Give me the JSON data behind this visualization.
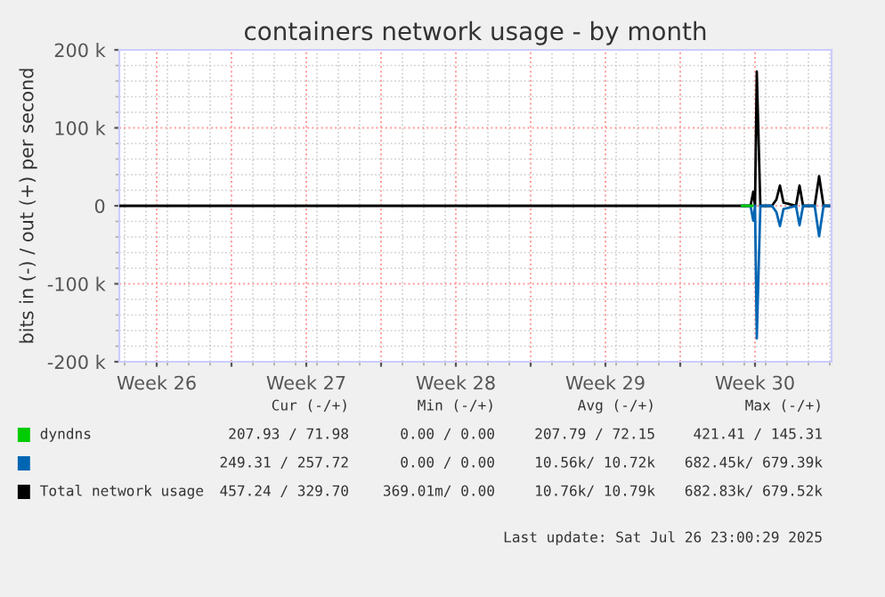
{
  "chart_data": {
    "type": "line",
    "title": "containers network usage - by month",
    "ylabel": "bits in (-) / out (+) per second",
    "xlim": [
      "2025-06-23T18:00",
      "2025-07-27T02:00"
    ],
    "xticks": [
      {
        "value": "2025-06-25T12:00",
        "label": "Week 26"
      },
      {
        "value": "2025-06-29",
        "label": null
      },
      {
        "value": "2025-07-02T12:00",
        "label": "Week 27"
      },
      {
        "value": "2025-07-06",
        "label": null
      },
      {
        "value": "2025-07-09T12:00",
        "label": "Week 28"
      },
      {
        "value": "2025-07-13",
        "label": null
      },
      {
        "value": "2025-07-16T12:00",
        "label": "Week 29"
      },
      {
        "value": "2025-07-20",
        "label": null
      },
      {
        "value": "2025-07-23T12:00",
        "label": "Week 30"
      }
    ],
    "ylim": [
      -200000,
      200000
    ],
    "yticks": [
      {
        "value": -200000,
        "label": "-200 k"
      },
      {
        "value": -100000,
        "label": "-100 k"
      },
      0,
      {
        "value": 100000,
        "label": "100 k"
      },
      {
        "value": 200000,
        "label": "200 k"
      }
    ],
    "grid": true,
    "legend": "bottom",
    "series": [
      {
        "name": "Total network usage",
        "color": "#000000",
        "x": [
          "2025-06-23T18:00",
          "2025-07-22T21:30",
          "2025-07-23T07:00",
          "2025-07-23T10:00",
          "2025-07-23T12:00",
          "2025-07-23T14:00",
          "2025-07-23T18:00",
          "2025-07-24T07:00",
          "2025-07-24T12:00",
          "2025-07-24T16:00",
          "2025-07-24T20:00",
          "2025-07-25T00:00",
          "2025-07-25T10:00",
          "2025-07-25T14:00",
          "2025-07-25T18:00",
          "2025-07-26T07:00",
          "2025-07-26T12:00",
          "2025-07-26T17:00",
          "2025-07-26T23:00"
        ],
        "values": [
          0,
          0,
          0,
          18000,
          0,
          172000,
          0,
          0,
          8000,
          26000,
          4000,
          3000,
          0,
          26000,
          0,
          0,
          38000,
          0,
          0
        ]
      },
      {
        "color": "#0066b3",
        "x": [
          "2025-07-22T21:30",
          "2025-07-23T07:00",
          "2025-07-23T10:00",
          "2025-07-23T12:00",
          "2025-07-23T14:00",
          "2025-07-23T18:00",
          "2025-07-24T07:00",
          "2025-07-24T12:00",
          "2025-07-24T16:00",
          "2025-07-24T20:00",
          "2025-07-25T00:00",
          "2025-07-25T10:00",
          "2025-07-25T14:00",
          "2025-07-25T18:00",
          "2025-07-26T07:00",
          "2025-07-26T12:00",
          "2025-07-26T17:00",
          "2025-07-26T23:00"
        ],
        "values": [
          0,
          0,
          -19000,
          0,
          -170000,
          0,
          0,
          -8000,
          -26000,
          -4000,
          -3000,
          0,
          -25000,
          0,
          0,
          -39000,
          0,
          0
        ]
      },
      {
        "name": "dyndns",
        "color": "#00cc00",
        "x": [
          "2025-07-22T21:30",
          "2025-07-23T09:00"
        ],
        "values": [
          0,
          0
        ]
      }
    ],
    "annotations": [
      "Cur (-/+)",
      "Min (-/+)",
      "Avg (-/+)",
      "Max (-/+)",
      "207.93 / 71.98",
      "0.00 / 0.00",
      "207.79 / 72.15",
      "421.41 / 145.31",
      "249.31 / 257.72",
      "0.00 / 0.00",
      "10.56k/ 10.72k",
      "682.45k/ 679.39k",
      "457.24 / 329.70",
      "369.01m/ 0.00",
      "10.76k/ 10.79k",
      "682.83k/ 679.52k",
      "Last update: Sat Jul 26 23:00:29 2025"
    ]
  }
}
